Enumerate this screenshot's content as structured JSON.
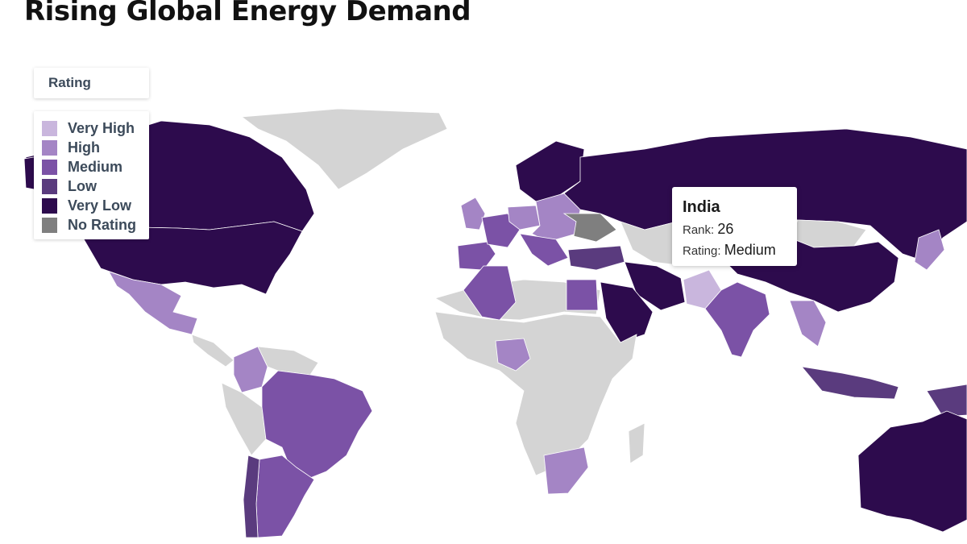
{
  "title": "Rising Global Energy Demand",
  "legend": {
    "title": "Rating",
    "items": [
      {
        "label": "Very High",
        "color": "#c9b6dd"
      },
      {
        "label": "High",
        "color": "#a485c5"
      },
      {
        "label": "Medium",
        "color": "#7b52a6"
      },
      {
        "label": "Low",
        "color": "#5a3b7e"
      },
      {
        "label": "Very Low",
        "color": "#2d0b4d"
      },
      {
        "label": "No Rating",
        "color": "#7f7f7f"
      }
    ]
  },
  "no_data_color": "#d4d4d4",
  "tooltip": {
    "country": "India",
    "rank_label": "Rank: ",
    "rank_value": "26",
    "rating_label": "Rating: ",
    "rating_value": "Medium"
  },
  "countries": [
    {
      "name": "Canada",
      "rating": "Very Low"
    },
    {
      "name": "United States",
      "rating": "Very Low"
    },
    {
      "name": "Mexico",
      "rating": "High"
    },
    {
      "name": "Greenland",
      "rating": "No Data"
    },
    {
      "name": "Brazil",
      "rating": "Medium"
    },
    {
      "name": "Argentina",
      "rating": "Medium"
    },
    {
      "name": "Chile",
      "rating": "Low"
    },
    {
      "name": "Colombia",
      "rating": "High"
    },
    {
      "name": "Russia",
      "rating": "Very Low"
    },
    {
      "name": "China",
      "rating": "Very Low"
    },
    {
      "name": "India",
      "rating": "Medium"
    },
    {
      "name": "Iran",
      "rating": "Very Low"
    },
    {
      "name": "Saudi Arabia",
      "rating": "Very Low"
    },
    {
      "name": "Egypt",
      "rating": "Medium"
    },
    {
      "name": "Algeria",
      "rating": "Medium"
    },
    {
      "name": "Nigeria",
      "rating": "High"
    },
    {
      "name": "South Africa",
      "rating": "High"
    },
    {
      "name": "Australia",
      "rating": "Very Low"
    },
    {
      "name": "Ukraine",
      "rating": "No Rating"
    },
    {
      "name": "Pakistan",
      "rating": "Very High"
    },
    {
      "name": "Kazakhstan",
      "rating": "No Data"
    },
    {
      "name": "Turkey",
      "rating": "Low"
    },
    {
      "name": "Indonesia",
      "rating": "Low"
    },
    {
      "name": "Japan",
      "rating": "High"
    },
    {
      "name": "Spain",
      "rating": "Medium"
    },
    {
      "name": "France",
      "rating": "Medium"
    },
    {
      "name": "Germany",
      "rating": "High"
    },
    {
      "name": "United Kingdom",
      "rating": "High"
    },
    {
      "name": "Scandinavia",
      "rating": "Very Low"
    }
  ]
}
